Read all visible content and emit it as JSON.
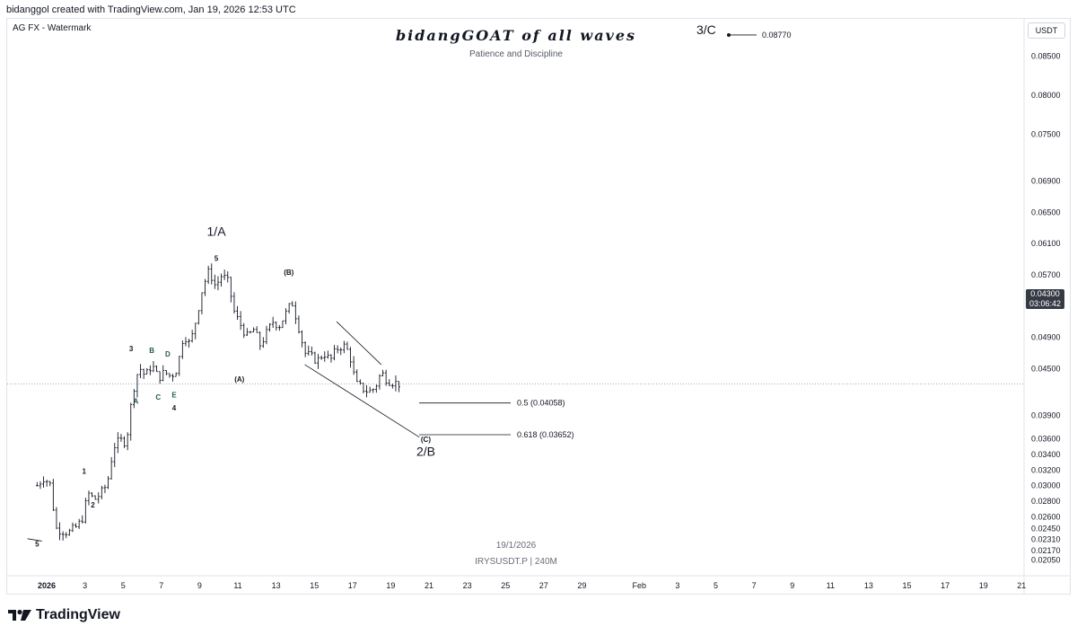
{
  "header": {
    "credit": "bidanggol created with TradingView.com, Jan 19, 2026 12:53 UTC"
  },
  "legend": {
    "label": "AG FX - Watermark"
  },
  "watermark": {
    "title": "bidangGOAT of all waves",
    "subtitle": "Patience and Discipline",
    "date": "19/1/2026",
    "symbol": "IRYSUSDT.P | 240M"
  },
  "price_axis": {
    "unit": "USDT",
    "current_price": "0.04300",
    "countdown": "03:06:42"
  },
  "brand": {
    "name": "TradingView"
  },
  "colors": {
    "candle": "#131722",
    "background": "#ffffff",
    "grid": "#e0e3eb",
    "tag_background": "#363a45"
  },
  "chart_data": {
    "type": "candlestick",
    "symbol": "IRYSUSDT.P",
    "interval": "240M",
    "x_range": [
      "2026-01-01",
      "2026-01-21"
    ],
    "ylim": [
      0.0195,
      0.0885
    ],
    "y_ticks": [
      "0.08500",
      "0.08000",
      "0.07500",
      "0.06900",
      "0.06500",
      "0.06100",
      "0.05700",
      "0.05300",
      "0.04900",
      "0.04500",
      "0.03900",
      "0.03600",
      "0.03400",
      "0.03200",
      "0.03000",
      "0.02800",
      "0.02600",
      "0.02450",
      "0.02310",
      "0.02170",
      "0.02050"
    ],
    "x_ticks": [
      {
        "label": "2026",
        "x": "2026-01-01",
        "bold": true
      },
      {
        "label": "3",
        "x": "2026-01-03"
      },
      {
        "label": "5",
        "x": "2026-01-05"
      },
      {
        "label": "7",
        "x": "2026-01-07"
      },
      {
        "label": "9",
        "x": "2026-01-09"
      },
      {
        "label": "11",
        "x": "2026-01-11"
      },
      {
        "label": "13",
        "x": "2026-01-13"
      },
      {
        "label": "15",
        "x": "2026-01-15"
      },
      {
        "label": "17",
        "x": "2026-01-17"
      },
      {
        "label": "19",
        "x": "2026-01-19"
      },
      {
        "label": "21",
        "x": "2026-01-21"
      },
      {
        "label": "23",
        "x": "2026-01-23"
      },
      {
        "label": "25",
        "x": "2026-01-25"
      },
      {
        "label": "27",
        "x": "2026-01-27"
      },
      {
        "label": "29",
        "x": "2026-01-29"
      },
      {
        "label": "Feb",
        "x": "2026-02-01"
      },
      {
        "label": "3",
        "x": "2026-02-03"
      },
      {
        "label": "5",
        "x": "2026-02-05"
      },
      {
        "label": "7",
        "x": "2026-02-07"
      },
      {
        "label": "9",
        "x": "2026-02-09"
      },
      {
        "label": "11",
        "x": "2026-02-11"
      },
      {
        "label": "13",
        "x": "2026-02-13"
      },
      {
        "label": "15",
        "x": "2026-02-15"
      },
      {
        "label": "17",
        "x": "2026-02-17"
      },
      {
        "label": "19",
        "x": "2026-02-19"
      },
      {
        "label": "21",
        "x": "2026-02-21"
      }
    ],
    "current_price": 0.043,
    "close_path": [
      [
        "2025-12-31 12:00",
        0.03
      ],
      [
        "2025-12-31 20:00",
        0.031
      ],
      [
        "2026-01-01 04:00",
        0.0303
      ],
      [
        "2026-01-01 12:00",
        0.0245
      ],
      [
        "2026-01-01 20:00",
        0.0242
      ],
      [
        "2026-01-02 04:00",
        0.024
      ],
      [
        "2026-01-02 12:00",
        0.0246
      ],
      [
        "2026-01-02 20:00",
        0.0255
      ],
      [
        "2026-01-03 04:00",
        0.029
      ],
      [
        "2026-01-03 12:00",
        0.0282
      ],
      [
        "2026-01-03 20:00",
        0.029
      ],
      [
        "2026-01-04 04:00",
        0.0302
      ],
      [
        "2026-01-04 12:00",
        0.035
      ],
      [
        "2026-01-04 20:00",
        0.0358
      ],
      [
        "2026-01-05 04:00",
        0.0356
      ],
      [
        "2026-01-05 12:00",
        0.042
      ],
      [
        "2026-01-05 20:00",
        0.0452
      ],
      [
        "2026-01-06 04:00",
        0.044
      ],
      [
        "2026-01-06 12:00",
        0.0455
      ],
      [
        "2026-01-06 20:00",
        0.0438
      ],
      [
        "2026-01-07 04:00",
        0.0445
      ],
      [
        "2026-01-07 12:00",
        0.044
      ],
      [
        "2026-01-07 20:00",
        0.045
      ],
      [
        "2026-01-08 04:00",
        0.0495
      ],
      [
        "2026-01-08 12:00",
        0.048
      ],
      [
        "2026-01-08 20:00",
        0.0515
      ],
      [
        "2026-01-09 04:00",
        0.0555
      ],
      [
        "2026-01-09 12:00",
        0.0575
      ],
      [
        "2026-01-09 20:00",
        0.0555
      ],
      [
        "2026-01-10 04:00",
        0.057
      ],
      [
        "2026-01-10 12:00",
        0.056
      ],
      [
        "2026-01-10 20:00",
        0.052
      ],
      [
        "2026-01-11 04:00",
        0.0505
      ],
      [
        "2026-01-11 12:00",
        0.049
      ],
      [
        "2026-01-11 20:00",
        0.05
      ],
      [
        "2026-01-12 04:00",
        0.048
      ],
      [
        "2026-01-12 12:00",
        0.0495
      ],
      [
        "2026-01-12 20:00",
        0.051
      ],
      [
        "2026-01-13 04:00",
        0.0505
      ],
      [
        "2026-01-13 12:00",
        0.052
      ],
      [
        "2026-01-13 20:00",
        0.0535
      ],
      [
        "2026-01-14 04:00",
        0.0505
      ],
      [
        "2026-01-14 12:00",
        0.047
      ],
      [
        "2026-01-14 20:00",
        0.0465
      ],
      [
        "2026-01-15 04:00",
        0.046
      ],
      [
        "2026-01-15 12:00",
        0.047
      ],
      [
        "2026-01-15 20:00",
        0.046
      ],
      [
        "2026-01-16 04:00",
        0.0475
      ],
      [
        "2026-01-16 12:00",
        0.048
      ],
      [
        "2026-01-16 20:00",
        0.047
      ],
      [
        "2026-01-17 04:00",
        0.043
      ],
      [
        "2026-01-17 12:00",
        0.0425
      ],
      [
        "2026-01-17 20:00",
        0.042
      ],
      [
        "2026-01-18 04:00",
        0.0425
      ],
      [
        "2026-01-18 12:00",
        0.0445
      ],
      [
        "2026-01-18 20:00",
        0.0435
      ],
      [
        "2026-01-19 04:00",
        0.0432
      ],
      [
        "2026-01-19 12:00",
        0.043
      ]
    ],
    "wave_labels": [
      {
        "text": "5",
        "x": "2025-12-31 12:00",
        "y": 0.0222,
        "size": "small"
      },
      {
        "text": "1",
        "x": "2026-01-02 23:00",
        "y": 0.0315,
        "size": "small"
      },
      {
        "text": "2",
        "x": "2026-01-03 10:00",
        "y": 0.0272,
        "size": "small"
      },
      {
        "text": "3",
        "x": "2026-01-05 10:00",
        "y": 0.0472,
        "size": "small"
      },
      {
        "text": "A",
        "x": "2026-01-05 16:00",
        "y": 0.0405,
        "size": "small",
        "color": "#1e5b50"
      },
      {
        "text": "B",
        "x": "2026-01-06 12:00",
        "y": 0.047,
        "size": "small",
        "color": "#1e5b50"
      },
      {
        "text": "C",
        "x": "2026-01-06 20:00",
        "y": 0.041,
        "size": "small",
        "color": "#1e5b50"
      },
      {
        "text": "D",
        "x": "2026-01-07 08:00",
        "y": 0.0465,
        "size": "small",
        "color": "#1e5b50"
      },
      {
        "text": "E",
        "x": "2026-01-07 16:00",
        "y": 0.0413,
        "size": "small",
        "color": "#1e5b50"
      },
      {
        "text": "4",
        "x": "2026-01-07 16:00",
        "y": 0.0396,
        "size": "small"
      },
      {
        "text": "5",
        "x": "2026-01-09 21:00",
        "y": 0.0588,
        "size": "small"
      },
      {
        "text": "1/A",
        "x": "2026-01-09 21:00",
        "y": 0.062,
        "size": "large"
      },
      {
        "text": "(A)",
        "x": "2026-01-11 02:00",
        "y": 0.0433,
        "size": "small"
      },
      {
        "text": "(B)",
        "x": "2026-01-13 16:00",
        "y": 0.057,
        "size": "small"
      },
      {
        "text": "(C)",
        "x": "2026-01-20 20:00",
        "y": 0.0356,
        "size": "small"
      },
      {
        "text": "2/B",
        "x": "2026-01-20 20:00",
        "y": 0.0338,
        "size": "large"
      },
      {
        "text": "3/C",
        "x": "2026-02-04 12:00",
        "y": 0.0878,
        "size": "large"
      }
    ],
    "fib_levels": [
      {
        "label": "0.5 (0.04058)",
        "value": 0.04058
      },
      {
        "label": "0.618 (0.03652)",
        "value": 0.03652
      }
    ],
    "target": {
      "label": "0.08770",
      "value": 0.0877
    },
    "wedge": [
      {
        "from": [
          "2026-01-16 04:00",
          0.051
        ],
        "to": [
          "2026-01-18 12:00",
          0.0455
        ]
      },
      {
        "from": [
          "2026-01-14 12:00",
          0.0455
        ],
        "to": [
          "2026-01-20 12:00",
          0.0362
        ]
      }
    ],
    "pre_trend_line": {
      "from": [
        "2025-12-31 00:00",
        0.0232
      ],
      "to": [
        "2025-12-31 18:00",
        0.0229
      ]
    }
  }
}
